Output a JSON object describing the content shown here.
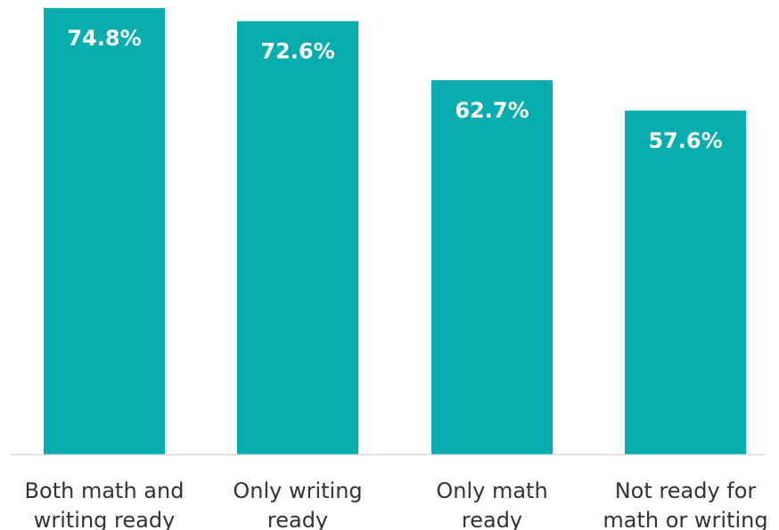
{
  "chart_data": {
    "type": "bar",
    "categories": [
      [
        "Both math and",
        "writing ready"
      ],
      [
        "Only writing",
        "ready"
      ],
      [
        "Only math",
        "ready"
      ],
      [
        "Not ready for",
        "math or writing"
      ]
    ],
    "values": [
      74.8,
      72.6,
      62.7,
      57.6
    ],
    "data_labels": [
      "74.8%",
      "72.6%",
      "62.7%",
      "57.6%"
    ],
    "ylim": [
      0,
      80
    ],
    "grid": false,
    "legend": "none",
    "bar_color": "#05ADAE",
    "axis_color": "#D9D9D9"
  }
}
